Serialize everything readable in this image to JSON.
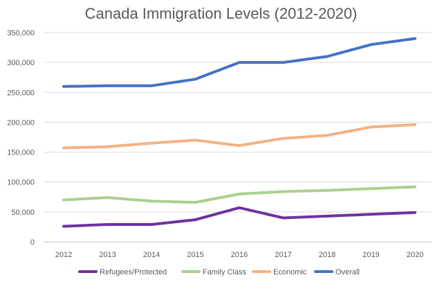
{
  "chart_data": {
    "type": "line",
    "title": "Canada Immigration Levels (2012-2020)",
    "xlabel": "",
    "ylabel": "",
    "categories": [
      "2012",
      "2013",
      "2014",
      "2015",
      "2016",
      "2017",
      "2018",
      "2019",
      "2020"
    ],
    "ylim": [
      0,
      350000
    ],
    "yticks": [
      0,
      50000,
      100000,
      150000,
      200000,
      250000,
      300000,
      350000
    ],
    "ytick_labels": [
      "0",
      "50,000",
      "100,000",
      "150,000",
      "200,000",
      "250,000",
      "300,000",
      "350,000"
    ],
    "grid": true,
    "legend_position": "bottom",
    "series": [
      {
        "name": "Refugees/Protected",
        "color": "#7030a0",
        "values": [
          26000,
          29000,
          29000,
          37000,
          57000,
          40000,
          43000,
          46000,
          49000
        ]
      },
      {
        "name": "Family Class",
        "color": "#a9d18e",
        "values": [
          70000,
          74000,
          68000,
          66000,
          80000,
          84000,
          86000,
          89000,
          92000
        ]
      },
      {
        "name": "Economic",
        "color": "#f4b183",
        "values": [
          157000,
          159000,
          165000,
          170000,
          161000,
          173000,
          178000,
          192000,
          196000
        ]
      },
      {
        "name": "Overall",
        "color": "#4472c4",
        "values": [
          260000,
          261000,
          261000,
          272000,
          300000,
          300000,
          310000,
          330000,
          340000
        ]
      }
    ]
  }
}
